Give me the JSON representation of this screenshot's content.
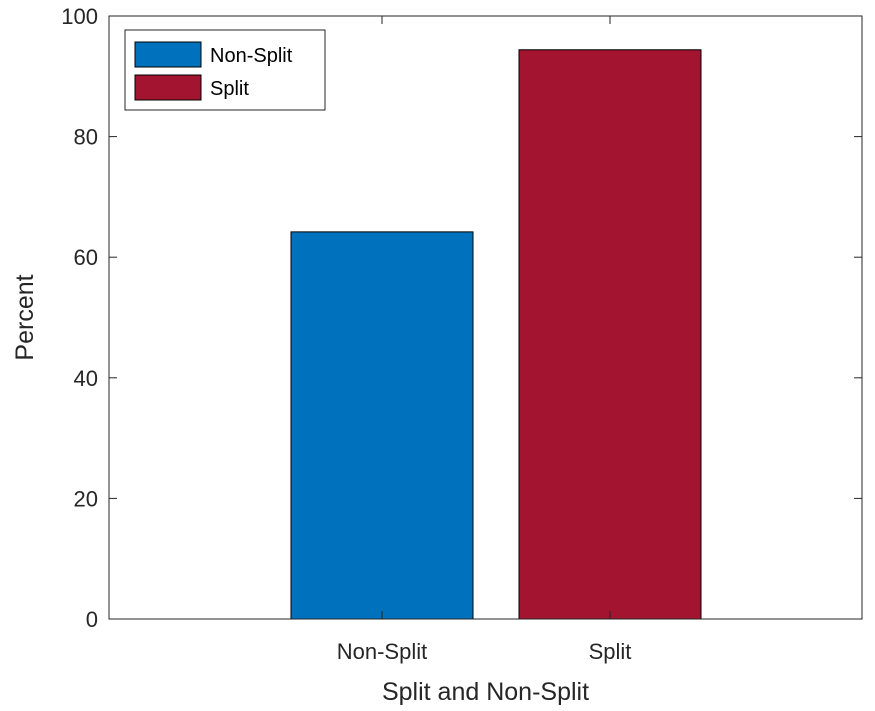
{
  "chart_data": {
    "type": "bar",
    "categories": [
      "Non-Split",
      "Split"
    ],
    "series": [
      {
        "name": "Non-Split",
        "color": "#0072BD",
        "values": [
          64.2,
          null
        ]
      },
      {
        "name": "Split",
        "color": "#A2142F",
        "values": [
          null,
          94.4
        ]
      }
    ],
    "xlabel": "Split and Non-Split",
    "ylabel": "Percent",
    "ylim": [
      0,
      100
    ],
    "yticks": [
      0,
      20,
      40,
      60,
      80,
      100
    ],
    "grid": false,
    "legend_position": "top-left"
  }
}
